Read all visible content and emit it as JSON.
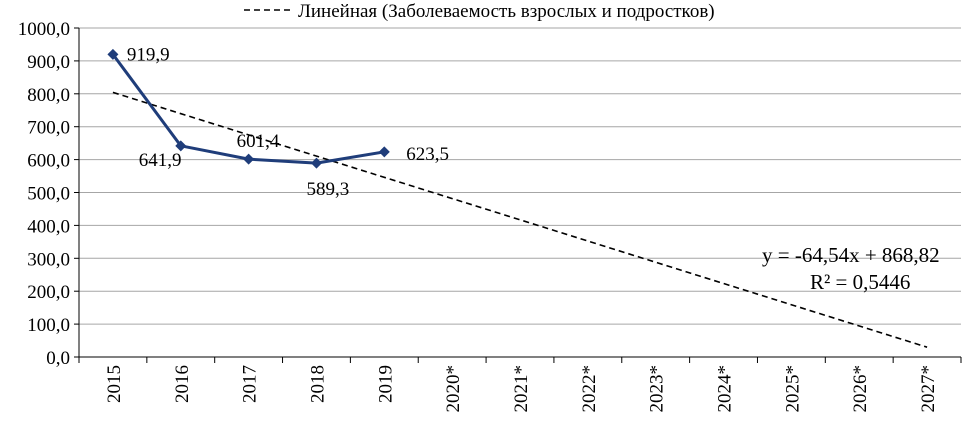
{
  "chart_data": {
    "type": "line",
    "categories": [
      "2015",
      "2016",
      "2017",
      "2018",
      "2019",
      "2020*",
      "2021*",
      "2022*",
      "2023*",
      "2024*",
      "2025*",
      "2026*",
      "2027*"
    ],
    "series": [
      {
        "name": "",
        "values": [
          919.9,
          641.9,
          601.4,
          589.3,
          623.5,
          null,
          null,
          null,
          null,
          null,
          null,
          null,
          null
        ],
        "data_labels": [
          "919,9",
          "641,9",
          "601,4",
          "589,3",
          "623,5"
        ],
        "color": "#1f3d7a"
      }
    ],
    "trendline": {
      "legend_label": "Линейная (Заболеваемость взрослых и подростков)",
      "slope": -64.54,
      "intercept": 868.82,
      "equation": "y = -64,54x + 868,82",
      "r_squared": "R² = 0,5446",
      "style": "dashed",
      "color": "#000000"
    },
    "ylim": [
      0,
      1000
    ],
    "y_ticks": [
      "0,0",
      "100,0",
      "200,0",
      "300,0",
      "400,0",
      "500,0",
      "600,0",
      "700,0",
      "800,0",
      "900,0",
      "1000,0"
    ],
    "grid": true,
    "legend_position": "top"
  }
}
